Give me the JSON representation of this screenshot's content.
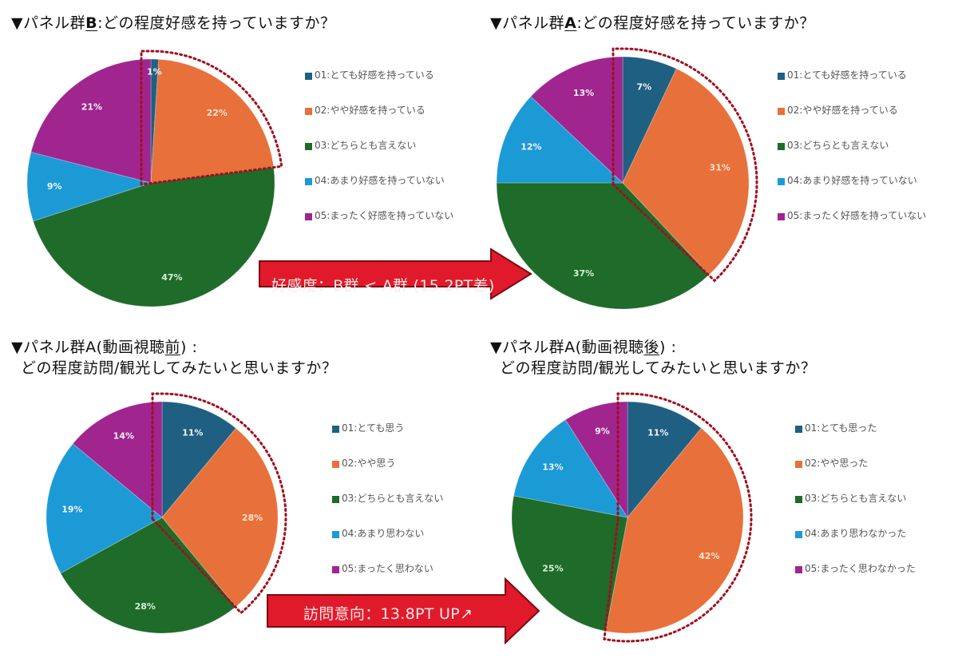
{
  "colors": {
    "s01": "#1f5f82",
    "s02": "#e8703a",
    "s03": "#1e6b2a",
    "s04": "#1c9ad6",
    "s05": "#a0258f",
    "highlight": "#a01020",
    "arrow_fill": "#e01a2a",
    "arrow_border": "#7a0a12"
  },
  "titles": {
    "t1_prefix": "▼パネル群",
    "t1_group": "B",
    "t1_suffix": ":どの程度好感を持っていますか？",
    "t2_prefix": "▼パネル群",
    "t2_group": "A",
    "t2_suffix": ":どの程度好感を持っていますか？",
    "t3_line1_prefix": "▼パネル群A(動画視聴",
    "t3_line1_em": "前",
    "t3_line1_suffix": ") :",
    "t3_line2": "どの程度訪問/観光してみたいと思いますか？",
    "t4_line1_prefix": "▼パネル群A(動画視聴",
    "t4_line1_em": "後",
    "t4_line1_suffix": ") :",
    "t4_line2": "どの程度訪問/観光してみたいと思いますか？"
  },
  "arrows": {
    "top": "好感度：B群 < A群 (15.2PT差)",
    "bottom": "訪問意向：13.8PT UP↗"
  },
  "chart_data": [
    {
      "type": "pie",
      "title": "▼パネル群B:どの程度好感を持っていますか？",
      "categories": [
        "01:とても好感を持っている",
        "02:やや好感を持っている",
        "03:どちらとも言えない",
        "04:あまり好感を持っていない",
        "05:まったく好感を持っていない"
      ],
      "values": [
        1,
        22,
        47,
        9,
        21
      ],
      "labels": [
        "1%",
        "22%",
        "47%",
        "9%",
        "21%"
      ],
      "highlighted": [
        "01",
        "02"
      ],
      "legend_position": "right"
    },
    {
      "type": "pie",
      "title": "▼パネル群A:どの程度好感を持っていますか？",
      "categories": [
        "01:とても好感を持っている",
        "02:やや好感を持っている",
        "03:どちらとも言えない",
        "04:あまり好感を持っていない",
        "05:まったく好感を持っていない"
      ],
      "values": [
        7,
        31,
        37,
        12,
        13
      ],
      "labels": [
        "7%",
        "31%",
        "37%",
        "12%",
        "13%"
      ],
      "highlighted": [
        "01",
        "02"
      ],
      "legend_position": "right"
    },
    {
      "type": "pie",
      "title": "▼パネル群A(動画視聴前): どの程度訪問/観光してみたいと思いますか？",
      "categories": [
        "01:とても思う",
        "02:やや思う",
        "03:どちらとも言えない",
        "04:あまり思わない",
        "05:まったく思わない"
      ],
      "values": [
        11,
        28,
        28,
        19,
        14
      ],
      "labels": [
        "11%",
        "28%",
        "28%",
        "19%",
        "14%"
      ],
      "highlighted": [
        "01",
        "02"
      ],
      "legend_position": "right"
    },
    {
      "type": "pie",
      "title": "▼パネル群A(動画視聴後): どの程度訪問/観光してみたいと思いますか？",
      "categories": [
        "01:とても思った",
        "02:やや思った",
        "03:どちらとも言えない",
        "04:あまり思わなかった",
        "05:まったく思わなかった"
      ],
      "values": [
        11,
        42,
        25,
        13,
        9
      ],
      "labels": [
        "11%",
        "42%",
        "25%",
        "13%",
        "9%"
      ],
      "highlighted": [
        "01",
        "02"
      ],
      "legend_position": "right"
    }
  ]
}
